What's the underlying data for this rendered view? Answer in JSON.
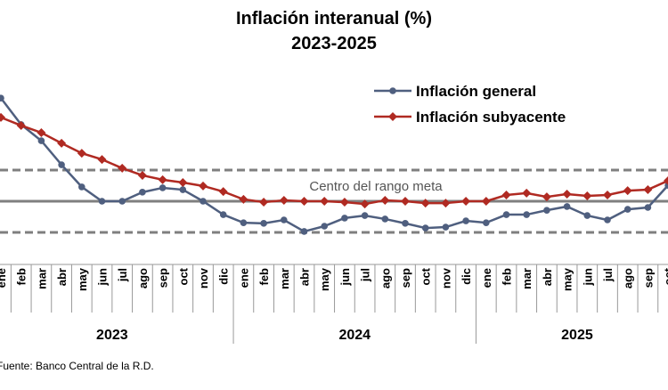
{
  "chart_data": {
    "type": "line",
    "title": "Inflación interanual (%)",
    "subtitle": "2023-2025",
    "months": [
      "ene",
      "feb",
      "mar",
      "abr",
      "may",
      "jun",
      "jul",
      "ago",
      "sep",
      "oct",
      "nov",
      "dic",
      "ene",
      "feb",
      "mar",
      "abr",
      "may",
      "jun",
      "jul",
      "ago",
      "sep",
      "oct",
      "nov",
      "dic",
      "ene",
      "feb",
      "mar",
      "abr",
      "may",
      "jun",
      "jul",
      "ago",
      "sep",
      "oct"
    ],
    "years": [
      {
        "label": "2023",
        "start": 0,
        "count": 12
      },
      {
        "label": "2024",
        "start": 12,
        "count": 12
      },
      {
        "label": "2025",
        "start": 24,
        "count": 10
      }
    ],
    "series": [
      {
        "name": "Inflación general",
        "color": "#4f5f7f",
        "marker": "circle",
        "values": [
          7.31,
          6.46,
          5.94,
          5.17,
          4.46,
          4.0,
          4.0,
          4.29,
          4.43,
          4.37,
          4.0,
          3.57,
          3.31,
          3.29,
          3.4,
          3.03,
          3.2,
          3.46,
          3.54,
          3.43,
          3.29,
          3.14,
          3.17,
          3.37,
          3.31,
          3.57,
          3.57,
          3.71,
          3.83,
          3.54,
          3.4,
          3.74,
          3.8,
          4.51
        ]
      },
      {
        "name": "Inflación subyacente",
        "color": "#b02a22",
        "marker": "diamond",
        "values": [
          6.69,
          6.43,
          6.2,
          5.86,
          5.54,
          5.34,
          5.06,
          4.83,
          4.69,
          4.6,
          4.49,
          4.31,
          4.06,
          3.97,
          4.03,
          4.0,
          4.0,
          3.97,
          3.91,
          4.03,
          4.0,
          3.94,
          3.94,
          4.0,
          4.0,
          4.2,
          4.26,
          4.14,
          4.23,
          4.17,
          4.2,
          4.34,
          4.37,
          4.66
        ]
      }
    ],
    "reference_lines": {
      "center": 4,
      "upper": 5,
      "lower": 3,
      "center_label": "Centro del rango meta"
    },
    "legend_position": "top-right",
    "ylim": [
      1.9,
      8.6
    ]
  },
  "source": "Fuente: Banco Central de la R.D."
}
